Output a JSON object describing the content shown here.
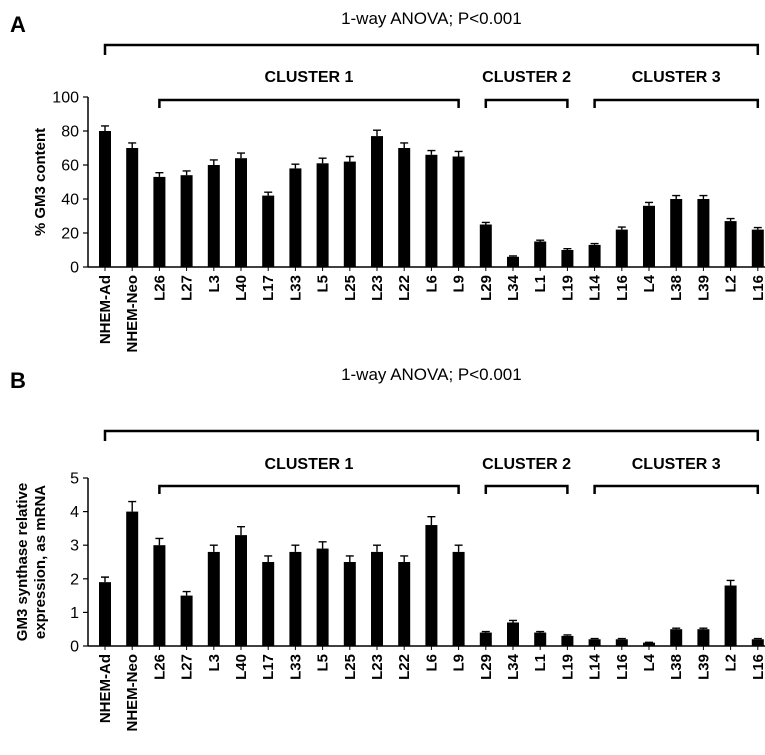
{
  "chart_data": [
    {
      "type": "bar",
      "panel_label": "A",
      "title": "1-way ANOVA; P<0.001",
      "ylabel": "% GM3 content",
      "xlabel": "",
      "ylim": [
        0,
        100
      ],
      "yticks": [
        0,
        20,
        40,
        60,
        80,
        100
      ],
      "categories": [
        "NHEM-Ad",
        "NHEM-Neo",
        "L26",
        "L27",
        "L3",
        "L40",
        "L17",
        "L33",
        "L5",
        "L25",
        "L23",
        "L22",
        "L6",
        "L9",
        "L29",
        "L34",
        "L1",
        "L19",
        "L14",
        "L16",
        "L4",
        "L38",
        "L39",
        "L2",
        "L16"
      ],
      "values": [
        80,
        70,
        53,
        54,
        60,
        64,
        42,
        58,
        61,
        62,
        77,
        70,
        66,
        65,
        25,
        6,
        15,
        10,
        13,
        22,
        36,
        40,
        40,
        27,
        22
      ],
      "errors": [
        3,
        3,
        2.5,
        2.5,
        3,
        3,
        2,
        2.5,
        3,
        3,
        3.5,
        3,
        2.5,
        3,
        1.2,
        0.5,
        0.8,
        0.8,
        0.8,
        1.5,
        2,
        2,
        2,
        1.5,
        1.2
      ],
      "clusters": [
        {
          "label": "CLUSTER 1",
          "start": 2,
          "end": 13
        },
        {
          "label": "CLUSTER 2",
          "start": 14,
          "end": 17
        },
        {
          "label": "CLUSTER 3",
          "start": 18,
          "end": 24
        }
      ],
      "grid": false,
      "legend": "none"
    },
    {
      "type": "bar",
      "panel_label": "B",
      "title": "1-way ANOVA; P<0.001",
      "ylabel": "GM3 synthase relative expression, as mRNA",
      "ylabel_lines": [
        "GM3 synthase relative",
        "expression, as mRNA"
      ],
      "xlabel": "",
      "ylim": [
        0,
        5
      ],
      "yticks": [
        0,
        1,
        2,
        3,
        4,
        5
      ],
      "categories": [
        "NHEM-Ad",
        "NHEM-Neo",
        "L26",
        "L27",
        "L3",
        "L40",
        "L17",
        "L33",
        "L5",
        "L25",
        "L23",
        "L22",
        "L6",
        "L9",
        "L29",
        "L34",
        "L1",
        "L19",
        "L14",
        "L16",
        "L4",
        "L38",
        "L39",
        "L2",
        "L16"
      ],
      "values": [
        1.9,
        4.0,
        3.0,
        1.5,
        2.8,
        3.3,
        2.5,
        2.8,
        2.9,
        2.5,
        2.8,
        2.5,
        3.6,
        2.8,
        0.4,
        0.7,
        0.4,
        0.3,
        0.2,
        0.2,
        0.1,
        0.5,
        0.5,
        1.8,
        0.2
      ],
      "errors": [
        0.15,
        0.3,
        0.2,
        0.12,
        0.2,
        0.25,
        0.18,
        0.2,
        0.2,
        0.18,
        0.2,
        0.18,
        0.25,
        0.2,
        0.03,
        0.06,
        0.03,
        0.03,
        0.02,
        0.02,
        0.01,
        0.03,
        0.03,
        0.15,
        0.02
      ],
      "clusters": [
        {
          "label": "CLUSTER 1",
          "start": 2,
          "end": 13
        },
        {
          "label": "CLUSTER 2",
          "start": 14,
          "end": 17
        },
        {
          "label": "CLUSTER 3",
          "start": 18,
          "end": 24
        }
      ],
      "grid": false,
      "legend": "none"
    }
  ]
}
